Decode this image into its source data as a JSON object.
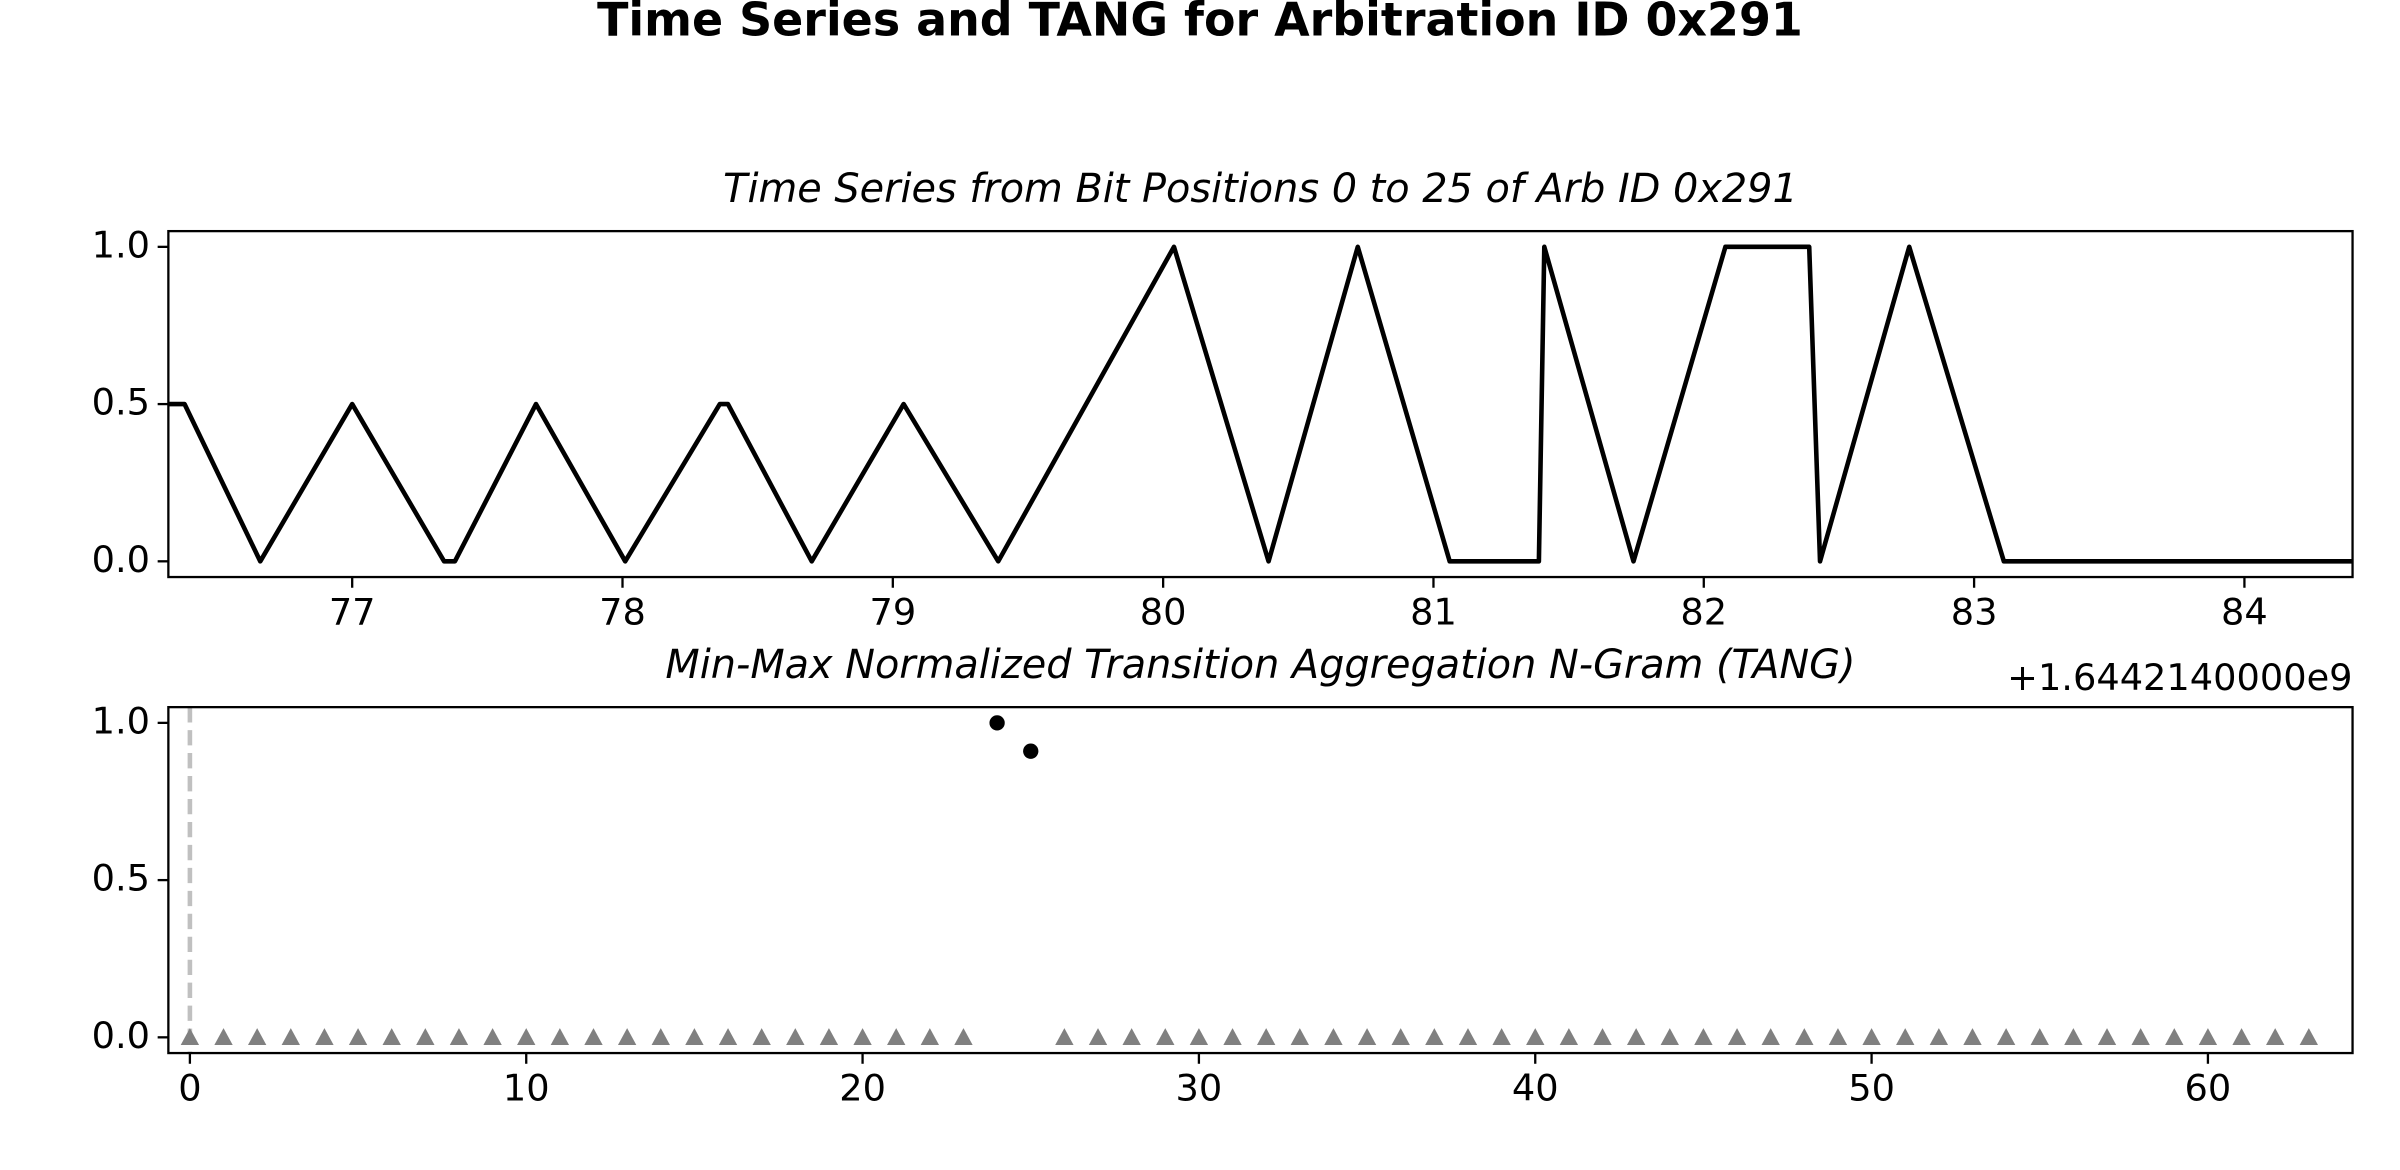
{
  "title": "Time Series and TANG for Arbitration ID 0x291",
  "chart_data": [
    {
      "type": "line",
      "title": "Time Series from Bit Positions 0 to 25 of Arb ID 0x291",
      "x_offset_label": "+1.6442140000e9",
      "series": [
        {
          "color": "#000000",
          "x": [
            76.32,
            76.38,
            76.66,
            77.0,
            77.34,
            77.38,
            77.68,
            78.01,
            78.36,
            78.39,
            78.7,
            79.04,
            79.39,
            80.04,
            80.39,
            80.72,
            81.06,
            81.39,
            81.41,
            81.74,
            82.08,
            82.39,
            82.43,
            82.76,
            83.11,
            84.4
          ],
          "values": [
            0.5,
            0.5,
            0,
            0.5,
            0,
            0,
            0.5,
            0,
            0.5,
            0.5,
            0,
            0.5,
            0,
            1,
            0,
            1,
            0,
            0,
            1,
            0,
            1,
            1,
            0,
            1,
            0,
            0
          ]
        }
      ],
      "xlim": [
        76.32,
        84.4
      ],
      "xticks": [
        77,
        78,
        79,
        80,
        81,
        82,
        83,
        84
      ],
      "ylim": [
        -0.05,
        1.05
      ],
      "yticks": [
        {
          "value": 0,
          "label": "0.0"
        },
        {
          "value": 0.5,
          "label": "0.5"
        },
        {
          "value": 1,
          "label": "1.0"
        }
      ]
    },
    {
      "type": "scatter",
      "title": "Min-Max Normalized Transition Aggregation N-Gram (TANG)",
      "vline": {
        "x": 0,
        "color": "#c0c0c0"
      },
      "series": [
        {
          "color": "#808080",
          "marker": "triangle",
          "x": [
            0,
            1,
            2,
            3,
            4,
            5,
            6,
            7,
            8,
            9,
            10,
            11,
            12,
            13,
            14,
            15,
            16,
            17,
            18,
            19,
            20,
            21,
            22,
            23,
            26,
            27,
            28,
            29,
            30,
            31,
            32,
            33,
            34,
            35,
            36,
            37,
            38,
            39,
            40,
            41,
            42,
            43,
            44,
            45,
            46,
            47,
            48,
            49,
            50,
            51,
            52,
            53,
            54,
            55,
            56,
            57,
            58,
            59,
            60,
            61,
            62,
            63
          ],
          "values": [
            0,
            0,
            0,
            0,
            0,
            0,
            0,
            0,
            0,
            0,
            0,
            0,
            0,
            0,
            0,
            0,
            0,
            0,
            0,
            0,
            0,
            0,
            0,
            0,
            0,
            0,
            0,
            0,
            0,
            0,
            0,
            0,
            0,
            0,
            0,
            0,
            0,
            0,
            0,
            0,
            0,
            0,
            0,
            0,
            0,
            0,
            0,
            0,
            0,
            0,
            0,
            0,
            0,
            0,
            0,
            0,
            0,
            0,
            0,
            0,
            0,
            0
          ]
        },
        {
          "color": "#000000",
          "marker": "circle",
          "x": [
            24,
            25
          ],
          "values": [
            1,
            0.91
          ]
        }
      ],
      "xlim": [
        -0.64,
        64.3
      ],
      "xticks": [
        0,
        10,
        20,
        30,
        40,
        50,
        60
      ],
      "ylim": [
        -0.05,
        1.05
      ],
      "yticks": [
        {
          "value": 0,
          "label": "0.0"
        },
        {
          "value": 0.5,
          "label": "0.5"
        },
        {
          "value": 1,
          "label": "1.0"
        }
      ]
    }
  ]
}
